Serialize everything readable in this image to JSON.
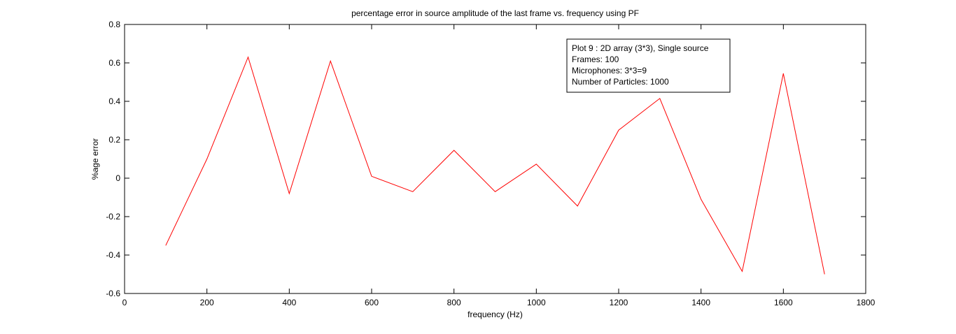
{
  "chart_data": {
    "type": "line",
    "title": "percentage error in source amplitude of the last frame vs. frequency using PF",
    "xlabel": "frequency (Hz)",
    "ylabel": "%age error",
    "xlim": [
      0,
      1800
    ],
    "ylim": [
      -0.6,
      0.8
    ],
    "xticks": [
      0,
      200,
      400,
      600,
      800,
      1000,
      1200,
      1400,
      1600,
      1800
    ],
    "yticks": [
      -0.6,
      -0.4,
      -0.2,
      0,
      0.2,
      0.4,
      0.6,
      0.8
    ],
    "grid": false,
    "series": [
      {
        "color": "#ff0000",
        "x": [
          100,
          200,
          300,
          400,
          500,
          600,
          700,
          800,
          900,
          1000,
          1100,
          1200,
          1300,
          1400,
          1500,
          1600,
          1700
        ],
        "values": [
          -0.35,
          0.1,
          0.63,
          -0.08,
          0.61,
          0.01,
          -0.07,
          0.145,
          -0.07,
          0.073,
          -0.145,
          0.25,
          0.415,
          -0.11,
          -0.485,
          0.545,
          -0.5
        ]
      }
    ],
    "annotation": {
      "placement": "top-right",
      "lines": [
        "Plot 9 : 2D array (3*3), Single source",
        "Frames: 100",
        "Microphones: 3*3=9",
        "Number of Particles: 1000"
      ]
    }
  }
}
